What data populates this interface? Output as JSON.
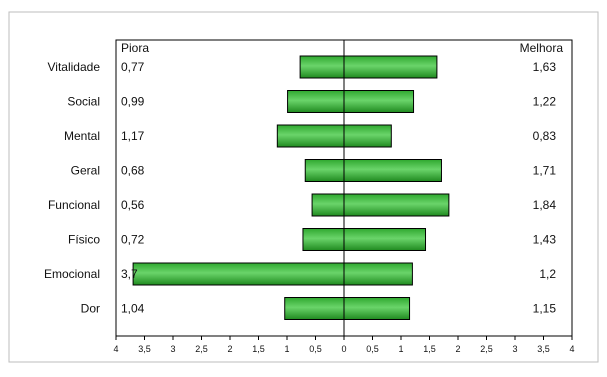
{
  "chart_data": {
    "type": "bar",
    "orientation": "horizontal-diverging",
    "categories": [
      "Vitalidade",
      "Social",
      "Mental",
      "Geral",
      "Funcional",
      "Físico",
      "Emocional",
      "Dor"
    ],
    "series": [
      {
        "name": "Piora",
        "direction": "left",
        "values": [
          0.77,
          0.99,
          1.17,
          0.68,
          0.56,
          0.72,
          3.7,
          1.04
        ],
        "labels": [
          "0,77",
          "0,99",
          "1,17",
          "0,68",
          "0,56",
          "0,72",
          "3,7",
          "1,04"
        ]
      },
      {
        "name": "Melhora",
        "direction": "right",
        "values": [
          1.63,
          1.22,
          0.83,
          1.71,
          1.84,
          1.43,
          1.2,
          1.15
        ],
        "labels": [
          "1,63",
          "1,22",
          "0,83",
          "1,71",
          "1,84",
          "1,43",
          "1,2",
          "1,15"
        ]
      }
    ],
    "xlim": [
      -4,
      4
    ],
    "ticks": [
      -4,
      -3.5,
      -3,
      -2.5,
      -2,
      -1.5,
      -1,
      -0.5,
      0,
      0.5,
      1,
      1.5,
      2,
      2.5,
      3,
      3.5,
      4
    ],
    "tick_labels": [
      "4",
      "3,5",
      "3",
      "2,5",
      "2",
      "1,5",
      "1",
      "0,5",
      "0",
      "0,5",
      "1",
      "1,5",
      "2",
      "2,5",
      "3",
      "3,5",
      "4"
    ],
    "grid": false,
    "bar_color": "#2fa82f"
  }
}
